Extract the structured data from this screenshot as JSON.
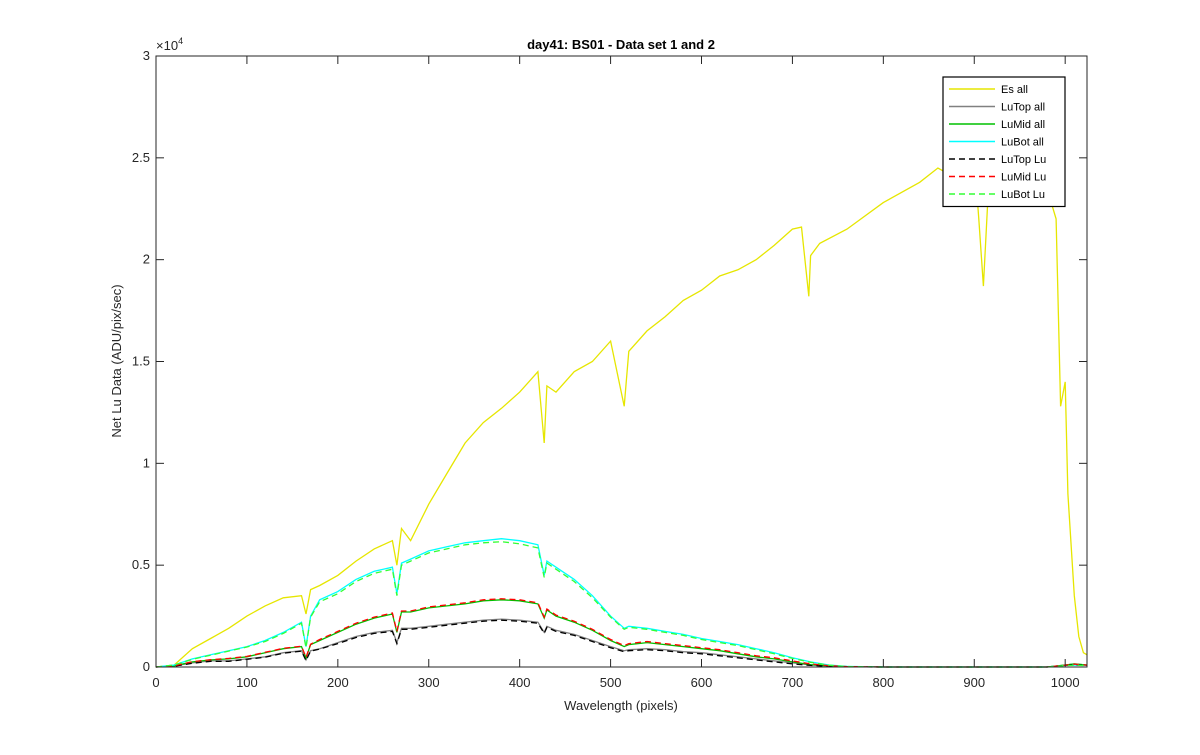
{
  "chart_data": {
    "type": "line",
    "title": "day41: BS01 - Data set 1 and 2",
    "xlabel": "Wavelength (pixels)",
    "ylabel": "Net Lu Data (ADU/pix/sec)",
    "xlim": [
      0,
      1024
    ],
    "ylim": [
      0,
      30000
    ],
    "xticks": [
      0,
      100,
      200,
      300,
      400,
      500,
      600,
      700,
      800,
      900,
      1000
    ],
    "yticks": [
      0,
      5000,
      10000,
      15000,
      20000,
      25000,
      30000
    ],
    "ytick_labels": [
      "0",
      "0.5",
      "1",
      "1.5",
      "2",
      "2.5",
      "3"
    ],
    "y_exponent_base": "×10",
    "y_exponent_power": "4",
    "grid": false,
    "legend_position": "top-right",
    "series": [
      {
        "name": "Es  all",
        "color": "#e6e600",
        "style": "solid",
        "x": [
          0,
          20,
          40,
          60,
          80,
          100,
          120,
          140,
          160,
          165,
          170,
          180,
          200,
          220,
          240,
          260,
          265,
          270,
          280,
          300,
          320,
          340,
          360,
          380,
          400,
          420,
          427,
          430,
          440,
          460,
          480,
          500,
          515,
          520,
          540,
          560,
          580,
          600,
          620,
          640,
          660,
          680,
          700,
          710,
          718,
          720,
          730,
          760,
          800,
          840,
          860,
          880,
          900,
          905,
          910,
          915,
          920,
          940,
          960,
          980,
          990,
          995,
          1000,
          1003,
          1010,
          1015,
          1020,
          1024
        ],
        "y": [
          0,
          100,
          900,
          1400,
          1900,
          2500,
          3000,
          3400,
          3500,
          2600,
          3800,
          4000,
          4500,
          5200,
          5800,
          6200,
          5000,
          6800,
          6200,
          8000,
          9500,
          11000,
          12000,
          12700,
          13500,
          14500,
          11000,
          13800,
          13500,
          14500,
          15000,
          16000,
          12800,
          15500,
          16500,
          17200,
          18000,
          18500,
          19200,
          19500,
          20000,
          20700,
          21500,
          21600,
          18200,
          20200,
          20800,
          21500,
          22800,
          23800,
          24500,
          24000,
          25000,
          22000,
          18700,
          23000,
          24200,
          24800,
          24500,
          23500,
          22000,
          12800,
          14000,
          8500,
          3500,
          1500,
          700,
          600
        ]
      },
      {
        "name": "LuTop  all",
        "color": "#808080",
        "style": "solid",
        "x": [
          0,
          20,
          40,
          60,
          80,
          100,
          120,
          140,
          160,
          165,
          170,
          180,
          200,
          220,
          240,
          260,
          265,
          270,
          280,
          300,
          320,
          340,
          360,
          380,
          400,
          420,
          427,
          430,
          440,
          460,
          480,
          500,
          515,
          520,
          540,
          560,
          580,
          600,
          620,
          640,
          660,
          680,
          700,
          720,
          740,
          760,
          800,
          850,
          900,
          950,
          980,
          1000,
          1010,
          1024
        ],
        "y": [
          0,
          50,
          200,
          300,
          300,
          400,
          500,
          700,
          800,
          350,
          800,
          900,
          1200,
          1500,
          1700,
          1800,
          1200,
          1900,
          1900,
          2000,
          2100,
          2200,
          2300,
          2350,
          2300,
          2200,
          1700,
          2000,
          1800,
          1600,
          1300,
          1000,
          800,
          850,
          900,
          850,
          750,
          700,
          600,
          500,
          400,
          300,
          200,
          100,
          50,
          20,
          0,
          0,
          0,
          0,
          0,
          100,
          150,
          100
        ]
      },
      {
        "name": "LuMid  all",
        "color": "#00c000",
        "style": "solid",
        "x": [
          0,
          20,
          40,
          60,
          80,
          100,
          120,
          140,
          160,
          165,
          170,
          180,
          200,
          220,
          240,
          260,
          265,
          270,
          280,
          300,
          320,
          340,
          360,
          380,
          400,
          420,
          427,
          430,
          440,
          460,
          480,
          500,
          515,
          520,
          540,
          560,
          580,
          600,
          620,
          640,
          660,
          680,
          700,
          720,
          740,
          760,
          800,
          850,
          900,
          950,
          980,
          1000,
          1010,
          1024
        ],
        "y": [
          0,
          60,
          250,
          350,
          400,
          500,
          700,
          900,
          1000,
          450,
          1100,
          1300,
          1700,
          2100,
          2400,
          2600,
          1700,
          2700,
          2700,
          2900,
          3000,
          3100,
          3250,
          3300,
          3250,
          3100,
          2400,
          2800,
          2500,
          2200,
          1800,
          1300,
          1000,
          1100,
          1200,
          1100,
          1000,
          900,
          800,
          650,
          500,
          400,
          250,
          120,
          60,
          20,
          0,
          0,
          0,
          0,
          0,
          100,
          150,
          100
        ]
      },
      {
        "name": "LuBot  all",
        "color": "#00ffff",
        "style": "solid",
        "x": [
          0,
          20,
          40,
          60,
          80,
          100,
          120,
          140,
          160,
          165,
          170,
          180,
          200,
          220,
          240,
          260,
          265,
          270,
          280,
          300,
          320,
          340,
          360,
          380,
          400,
          420,
          427,
          430,
          440,
          460,
          480,
          500,
          515,
          520,
          540,
          560,
          580,
          600,
          620,
          640,
          660,
          680,
          700,
          720,
          740,
          760,
          800,
          850,
          900,
          950,
          980,
          1000,
          1010,
          1024
        ],
        "y": [
          0,
          100,
          400,
          600,
          800,
          1000,
          1300,
          1700,
          2200,
          1000,
          2500,
          3300,
          3700,
          4300,
          4700,
          4900,
          3600,
          5100,
          5300,
          5700,
          5900,
          6100,
          6200,
          6300,
          6200,
          6000,
          4500,
          5200,
          4900,
          4300,
          3500,
          2500,
          1900,
          2000,
          1900,
          1750,
          1600,
          1400,
          1250,
          1100,
          900,
          700,
          450,
          250,
          100,
          30,
          0,
          0,
          0,
          0,
          0,
          80,
          100,
          80
        ]
      },
      {
        "name": "LuTop  Lu",
        "color": "#000000",
        "style": "dashed",
        "x": [
          0,
          20,
          40,
          60,
          80,
          100,
          120,
          140,
          160,
          165,
          170,
          180,
          200,
          220,
          240,
          260,
          265,
          270,
          280,
          300,
          320,
          340,
          360,
          380,
          400,
          420,
          427,
          430,
          440,
          460,
          480,
          500,
          515,
          520,
          540,
          560,
          580,
          600,
          620,
          640,
          660,
          680,
          700,
          720,
          740,
          760,
          800,
          850,
          900,
          950,
          980,
          1000,
          1010,
          1024
        ],
        "y": [
          0,
          40,
          180,
          280,
          280,
          380,
          480,
          680,
          780,
          320,
          780,
          880,
          1150,
          1450,
          1650,
          1750,
          1150,
          1850,
          1850,
          1950,
          2050,
          2150,
          2250,
          2300,
          2250,
          2150,
          1650,
          1950,
          1750,
          1550,
          1250,
          950,
          750,
          800,
          850,
          800,
          700,
          650,
          550,
          450,
          350,
          250,
          150,
          80,
          40,
          10,
          0,
          0,
          0,
          0,
          0,
          80,
          120,
          80
        ]
      },
      {
        "name": "LuMid  Lu",
        "color": "#ff0000",
        "style": "dashed",
        "x": [
          0,
          20,
          40,
          60,
          80,
          100,
          120,
          140,
          160,
          165,
          170,
          180,
          200,
          220,
          240,
          260,
          265,
          270,
          280,
          300,
          320,
          340,
          360,
          380,
          400,
          420,
          427,
          430,
          440,
          460,
          480,
          500,
          515,
          520,
          540,
          560,
          580,
          600,
          620,
          640,
          660,
          680,
          700,
          720,
          740,
          760,
          800,
          850,
          900,
          950,
          980,
          1000,
          1010,
          1024
        ],
        "y": [
          0,
          60,
          260,
          360,
          420,
          520,
          720,
          920,
          1020,
          470,
          1120,
          1350,
          1750,
          2150,
          2450,
          2650,
          1750,
          2750,
          2750,
          2950,
          3050,
          3150,
          3300,
          3350,
          3300,
          3150,
          2450,
          2850,
          2550,
          2250,
          1850,
          1350,
          1050,
          1150,
          1250,
          1150,
          1050,
          950,
          850,
          700,
          550,
          450,
          300,
          150,
          70,
          20,
          0,
          0,
          0,
          0,
          0,
          90,
          140,
          90
        ]
      },
      {
        "name": "LuBot  Lu",
        "color": "#33ff33",
        "style": "dashed",
        "x": [
          0,
          20,
          40,
          60,
          80,
          100,
          120,
          140,
          160,
          165,
          170,
          180,
          200,
          220,
          240,
          260,
          265,
          270,
          280,
          300,
          320,
          340,
          360,
          380,
          400,
          420,
          427,
          430,
          440,
          460,
          480,
          500,
          515,
          520,
          540,
          560,
          580,
          600,
          620,
          640,
          660,
          680,
          700,
          720,
          740,
          760,
          800,
          850,
          900,
          950,
          980,
          1000,
          1010,
          1024
        ],
        "y": [
          0,
          100,
          380,
          580,
          780,
          980,
          1250,
          1650,
          2150,
          950,
          2450,
          3200,
          3600,
          4200,
          4600,
          4800,
          3500,
          5000,
          5200,
          5600,
          5800,
          6000,
          6100,
          6150,
          6050,
          5850,
          4400,
          5100,
          4800,
          4200,
          3400,
          2450,
          1850,
          1950,
          1850,
          1700,
          1550,
          1350,
          1200,
          1050,
          850,
          650,
          420,
          230,
          90,
          25,
          0,
          0,
          0,
          0,
          0,
          70,
          90,
          70
        ]
      }
    ]
  }
}
